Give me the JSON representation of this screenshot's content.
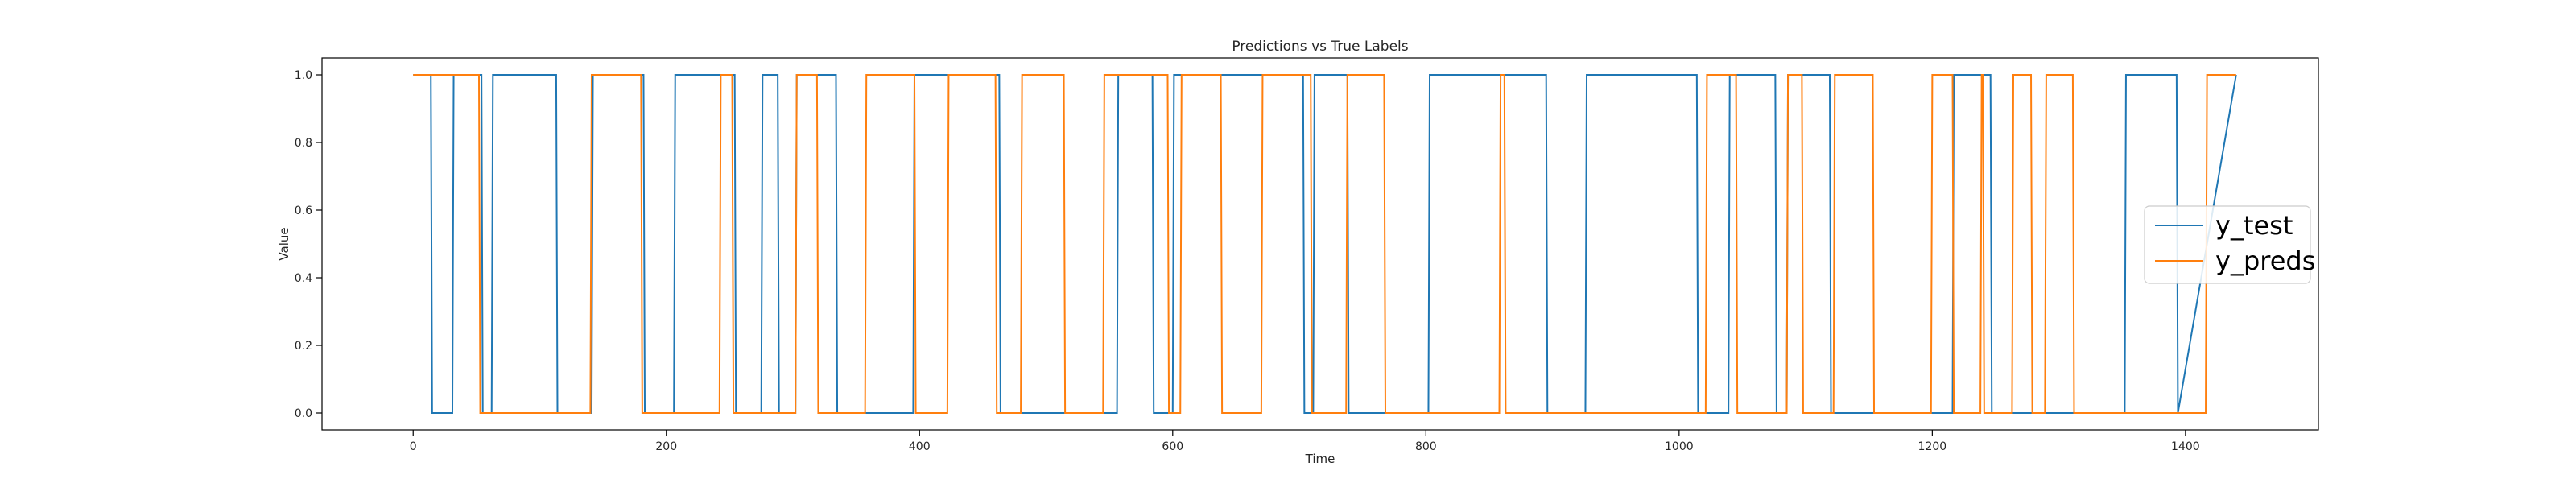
{
  "chart_data": {
    "type": "line",
    "title": "Predictions vs True Labels",
    "xlabel": "Time",
    "ylabel": "Value",
    "xlim": [
      -72,
      1505
    ],
    "ylim": [
      -0.05,
      1.05
    ],
    "xticks": [
      0,
      200,
      400,
      600,
      800,
      1000,
      1200,
      1400
    ],
    "yticks": [
      "0.0",
      "0.2",
      "0.4",
      "0.6",
      "0.8",
      "1.0"
    ],
    "grid": false,
    "legend_position": "center-right",
    "series": [
      {
        "name": "y_test",
        "color": "#1f77b4",
        "x": [
          0,
          14,
          15,
          31,
          32,
          54,
          55,
          62,
          63,
          113,
          114,
          141,
          142,
          182,
          183,
          206,
          207,
          254,
          255,
          275,
          276,
          288,
          289,
          302,
          303,
          334,
          335,
          395,
          396,
          463,
          464,
          556,
          557,
          584,
          585,
          600,
          601,
          703,
          704,
          711,
          712,
          738,
          739,
          802,
          803,
          895,
          896,
          926,
          927,
          1014,
          1015,
          1039,
          1040,
          1076,
          1077,
          1085,
          1086,
          1119,
          1120,
          1216,
          1217,
          1246,
          1247,
          1352,
          1353,
          1393,
          1394,
          1440
        ],
        "y": [
          1,
          1,
          0,
          0,
          1,
          1,
          0,
          0,
          1,
          1,
          0,
          0,
          1,
          1,
          0,
          0,
          1,
          1,
          0,
          0,
          1,
          1,
          0,
          0,
          1,
          1,
          0,
          0,
          1,
          1,
          0,
          0,
          1,
          1,
          0,
          0,
          1,
          1,
          0,
          0,
          1,
          1,
          0,
          0,
          1,
          1,
          0,
          0,
          1,
          1,
          0,
          0,
          1,
          1,
          0,
          0,
          1,
          1,
          0,
          0,
          1,
          1,
          0,
          0,
          1,
          1,
          0,
          1
        ]
      },
      {
        "name": "y_preds",
        "color": "#ff7f0e",
        "x": [
          0,
          52,
          53,
          140,
          141,
          180,
          181,
          242,
          243,
          252,
          253,
          302,
          303,
          319,
          320,
          357,
          358,
          396,
          397,
          422,
          423,
          460,
          461,
          480,
          481,
          514,
          515,
          545,
          546,
          596,
          597,
          606,
          607,
          638,
          639,
          670,
          671,
          709,
          710,
          737,
          738,
          767,
          768,
          858,
          859,
          862,
          863,
          1021,
          1022,
          1045,
          1046,
          1085,
          1086,
          1097,
          1098,
          1122,
          1123,
          1153,
          1154,
          1199,
          1200,
          1216,
          1217,
          1238,
          1239,
          1240,
          1241,
          1263,
          1264,
          1278,
          1279,
          1289,
          1290,
          1311,
          1312,
          1416,
          1417,
          1440
        ],
        "y": [
          1,
          1,
          0,
          0,
          1,
          1,
          0,
          0,
          1,
          1,
          0,
          0,
          1,
          1,
          0,
          0,
          1,
          1,
          0,
          0,
          1,
          1,
          0,
          0,
          1,
          1,
          0,
          0,
          1,
          1,
          0,
          0,
          1,
          1,
          0,
          0,
          1,
          1,
          0,
          0,
          1,
          1,
          0,
          0,
          1,
          1,
          0,
          0,
          1,
          1,
          0,
          0,
          1,
          1,
          0,
          0,
          1,
          1,
          0,
          0,
          1,
          1,
          0,
          0,
          1,
          1,
          0,
          0,
          1,
          1,
          0,
          0,
          1,
          1,
          0,
          0,
          1,
          1
        ]
      }
    ]
  }
}
